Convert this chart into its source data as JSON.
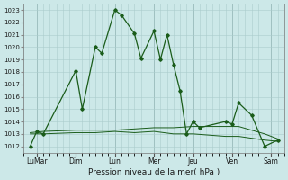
{
  "xlabel": "Pression niveau de la mer( hPa )",
  "bg_color": "#cce8e8",
  "grid_color": "#aacccc",
  "line_color": "#1a5c1a",
  "ylim": [
    1011.5,
    1023.5
  ],
  "yticks": [
    1012,
    1013,
    1014,
    1015,
    1016,
    1017,
    1018,
    1019,
    1020,
    1021,
    1022,
    1023
  ],
  "day_labels": [
    "LuMar",
    "Dim",
    "Lun",
    "Mer",
    "Jeu",
    "Ven",
    "Sam"
  ],
  "day_positions": [
    1,
    4,
    7,
    10,
    13,
    16,
    19
  ],
  "xlim": [
    0,
    20
  ],
  "minor_x": 0.5,
  "series1_x": [
    0.5,
    1.0,
    1.5,
    4.0,
    4.5,
    5.5,
    6.0,
    7.0,
    7.5,
    8.5,
    9.0,
    10.0,
    10.5,
    11.0,
    11.5,
    12.0,
    12.5,
    13.0,
    13.5,
    15.5,
    16.0,
    16.5,
    17.5,
    18.5,
    19.5
  ],
  "series1_y": [
    1012.0,
    1013.2,
    1013.0,
    1018.1,
    1015.0,
    1020.0,
    1019.5,
    1023.0,
    1022.6,
    1021.1,
    1019.1,
    1021.3,
    1019.0,
    1021.0,
    1018.6,
    1016.5,
    1013.0,
    1014.0,
    1013.5,
    1014.0,
    1013.8,
    1015.5,
    1014.5,
    1012.0,
    1012.5
  ],
  "series2_x": [
    0.5,
    1.5,
    4.0,
    5.5,
    7.0,
    8.5,
    10.0,
    11.5,
    13.0,
    15.5,
    16.5,
    18.5,
    19.5
  ],
  "series2_y": [
    1013.1,
    1013.2,
    1013.3,
    1013.3,
    1013.3,
    1013.4,
    1013.5,
    1013.5,
    1013.6,
    1013.6,
    1013.6,
    1013.0,
    1012.6
  ],
  "series3_x": [
    0.5,
    1.5,
    4.0,
    5.5,
    7.0,
    8.5,
    10.0,
    11.5,
    13.0,
    15.5,
    16.5,
    18.5,
    19.5
  ],
  "series3_y": [
    1013.0,
    1013.0,
    1013.1,
    1013.1,
    1013.2,
    1013.1,
    1013.2,
    1013.0,
    1013.0,
    1012.8,
    1012.8,
    1012.5,
    1012.4
  ],
  "vline_positions": [
    1,
    4,
    7,
    10,
    13,
    16,
    19
  ]
}
